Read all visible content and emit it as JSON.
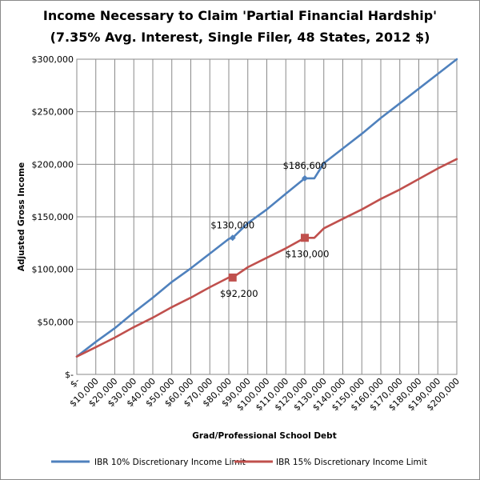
{
  "chart_data": {
    "type": "line",
    "title": [
      "Income  Necessary to Claim 'Partial Financial Hardship'",
      "(7.35% Avg. Interest, Single Filer, 48 States, 2012 $)"
    ],
    "xlabel": "Grad/Professional School Debt",
    "ylabel": "Adjusted Gross Income",
    "xlim": [
      0,
      200000
    ],
    "ylim": [
      0,
      300000
    ],
    "x_ticks": [
      0,
      10000,
      20000,
      30000,
      40000,
      50000,
      60000,
      70000,
      80000,
      90000,
      100000,
      110000,
      120000,
      130000,
      140000,
      150000,
      160000,
      170000,
      180000,
      190000,
      200000
    ],
    "x_tick_labels": [
      "$-",
      "$10,000",
      "$20,000",
      "$30,000",
      "$40,000",
      "$50,000",
      "$60,000",
      "$70,000",
      "$80,000",
      "$90,000",
      "$100,000",
      "$110,000",
      "$120,000",
      "$130,000",
      "$140,000",
      "$150,000",
      "$160,000",
      "$170,000",
      "$180,000",
      "$190,000",
      "$200,000"
    ],
    "y_ticks": [
      0,
      50000,
      100000,
      150000,
      200000,
      250000,
      300000
    ],
    "y_tick_labels": [
      "$-",
      "$50,000",
      "$100,000",
      "$150,000",
      "$200,000",
      "$250,000",
      "$300,000"
    ],
    "grid": {
      "vertical": true,
      "horizontal": true
    },
    "legend_position": "bottom",
    "series": [
      {
        "name": "IBR 10% Discretionary Income Limit",
        "color": "#4f81bd",
        "x": [
          0,
          10000,
          20000,
          30000,
          40000,
          50000,
          60000,
          70000,
          80000,
          82000,
          90000,
          100000,
          110000,
          120000,
          125000,
          130000,
          140000,
          150000,
          160000,
          170000,
          180000,
          190000,
          200000
        ],
        "y": [
          17000,
          31000,
          44000,
          59000,
          73000,
          88000,
          101000,
          115000,
          129000,
          130000,
          144000,
          157000,
          172000,
          186600,
          186600,
          201000,
          215000,
          229000,
          244000,
          258000,
          272000,
          286000,
          300000
        ],
        "markers": [
          {
            "x": 82000,
            "y": 130000,
            "label": "$130,000"
          },
          {
            "x": 120000,
            "y": 186600,
            "label": "$186,600"
          }
        ]
      },
      {
        "name": "IBR 15% Discretionary Income Limit",
        "color": "#c0504d",
        "x": [
          0,
          10000,
          20000,
          30000,
          40000,
          50000,
          60000,
          70000,
          80000,
          82000,
          90000,
          100000,
          110000,
          120000,
          125000,
          130000,
          140000,
          150000,
          160000,
          170000,
          180000,
          190000,
          200000
        ],
        "y": [
          17000,
          26000,
          35000,
          45000,
          54000,
          64000,
          73000,
          83000,
          92200,
          92200,
          102000,
          111000,
          120000,
          130000,
          130000,
          139000,
          148000,
          157000,
          167000,
          176000,
          186000,
          196000,
          205000
        ],
        "markers": [
          {
            "x": 82000,
            "y": 92200,
            "label": "$92,200"
          },
          {
            "x": 120000,
            "y": 130000,
            "label": "$130,000"
          }
        ]
      }
    ]
  }
}
